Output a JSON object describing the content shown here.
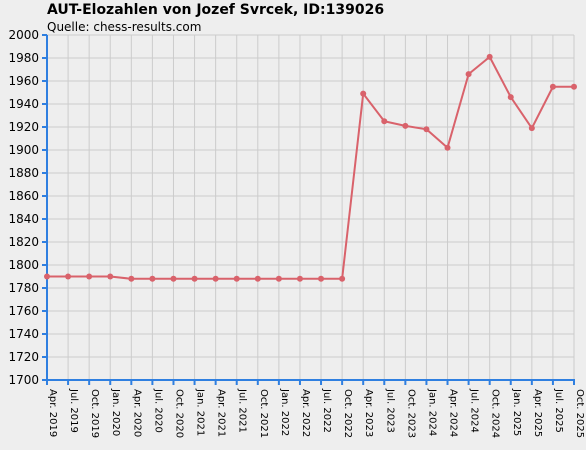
{
  "chart_data": {
    "type": "line",
    "title": "AUT-Elozahlen von Jozef Svrcek, ID:139026",
    "subtitle": "Quelle: chess-results.com",
    "xlabel": "",
    "ylabel": "",
    "ylim": [
      1700,
      2000
    ],
    "ytick_step": 20,
    "grid": true,
    "x": [
      "Apr. 2019",
      "Jul. 2019",
      "Oct. 2019",
      "Jan. 2020",
      "Apr. 2020",
      "Jul. 2020",
      "Oct. 2020",
      "Jan. 2021",
      "Apr. 2021",
      "Jul. 2021",
      "Oct. 2021",
      "Jan. 2022",
      "Apr. 2022",
      "Jul. 2022",
      "Oct. 2022",
      "Apr. 2023",
      "Jul. 2023",
      "Oct. 2023",
      "Jan. 2024",
      "Apr. 2024",
      "Jul. 2024",
      "Oct. 2024",
      "Jan. 2025",
      "Apr. 2025",
      "Jul. 2025",
      "Oct. 2025"
    ],
    "series": [
      {
        "values": [
          1790,
          1790,
          1790,
          1790,
          1788,
          1788,
          1788,
          1788,
          1788,
          1788,
          1788,
          1788,
          1788,
          1788,
          1788,
          1949,
          1925,
          1921,
          1918,
          1902,
          1966,
          1981,
          1946,
          1919,
          1955,
          1955
        ]
      }
    ],
    "colors": {
      "line": "#d9626b",
      "axis": "#2f7fe0",
      "grid": "#cccccc",
      "background": "#eeeeee"
    }
  }
}
